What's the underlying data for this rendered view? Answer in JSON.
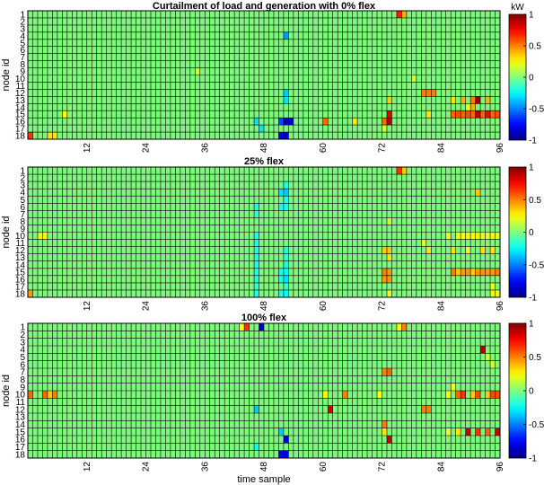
{
  "chart_data": [
    {
      "type": "heatmap",
      "title": "Curtailment of load and generation with 0% flex",
      "ylabel": "node id",
      "xlabel": "",
      "rows": 18,
      "cols": 96,
      "x_ticks": [
        12,
        24,
        36,
        48,
        60,
        72,
        84,
        96
      ],
      "y_ticks": [
        1,
        2,
        3,
        4,
        5,
        6,
        7,
        8,
        9,
        10,
        11,
        12,
        13,
        14,
        15,
        16,
        17,
        18
      ],
      "clim": [
        -1,
        1
      ],
      "colormap": "jet",
      "grid": true,
      "colorbar": {
        "unit_label": "kW",
        "ticks": [
          1,
          0.5,
          0,
          -0.5,
          -1
        ]
      },
      "nonzero_cells": [
        {
          "node": 1,
          "t": 76,
          "v": 0.7
        },
        {
          "node": 1,
          "t": 77,
          "v": 0.4
        },
        {
          "node": 4,
          "t": 53,
          "v": -0.45
        },
        {
          "node": 9,
          "t": 35,
          "v": 0.15
        },
        {
          "node": 10,
          "t": 79,
          "v": 0.15
        },
        {
          "node": 12,
          "t": 53,
          "v": -0.35
        },
        {
          "node": 12,
          "t": 81,
          "v": 0.5
        },
        {
          "node": 12,
          "t": 82,
          "v": 0.5
        },
        {
          "node": 12,
          "t": 83,
          "v": 0.5
        },
        {
          "node": 13,
          "t": 53,
          "v": -0.3
        },
        {
          "node": 13,
          "t": 74,
          "v": 0.35
        },
        {
          "node": 13,
          "t": 87,
          "v": 0.3
        },
        {
          "node": 13,
          "t": 89,
          "v": 0.4
        },
        {
          "node": 13,
          "t": 91,
          "v": 0.5
        },
        {
          "node": 13,
          "t": 92,
          "v": 0.95
        },
        {
          "node": 13,
          "t": 94,
          "v": 0.4
        },
        {
          "node": 14,
          "t": 90,
          "v": 0.2
        },
        {
          "node": 14,
          "t": 91,
          "v": 0.4
        },
        {
          "node": 15,
          "t": 8,
          "v": 0.25
        },
        {
          "node": 15,
          "t": 74,
          "v": 0.8
        },
        {
          "node": 15,
          "t": 82,
          "v": 0.3
        },
        {
          "node": 15,
          "t": 87,
          "v": 0.55
        },
        {
          "node": 15,
          "t": 88,
          "v": 0.6
        },
        {
          "node": 15,
          "t": 89,
          "v": 0.55
        },
        {
          "node": 15,
          "t": 90,
          "v": 0.6
        },
        {
          "node": 15,
          "t": 91,
          "v": 0.55
        },
        {
          "node": 15,
          "t": 92,
          "v": 0.9
        },
        {
          "node": 15,
          "t": 93,
          "v": 0.55
        },
        {
          "node": 15,
          "t": 94,
          "v": 0.75
        },
        {
          "node": 15,
          "t": 95,
          "v": 0.55
        },
        {
          "node": 15,
          "t": 96,
          "v": 0.6
        },
        {
          "node": 16,
          "t": 47,
          "v": -0.3
        },
        {
          "node": 16,
          "t": 52,
          "v": -0.6
        },
        {
          "node": 16,
          "t": 53,
          "v": -0.85
        },
        {
          "node": 16,
          "t": 54,
          "v": -0.85
        },
        {
          "node": 16,
          "t": 61,
          "v": 0.55
        },
        {
          "node": 16,
          "t": 67,
          "v": 0.3
        },
        {
          "node": 16,
          "t": 73,
          "v": 0.55
        },
        {
          "node": 16,
          "t": 74,
          "v": 0.9
        },
        {
          "node": 17,
          "t": 48,
          "v": -0.3
        },
        {
          "node": 17,
          "t": 73,
          "v": 0.15
        },
        {
          "node": 18,
          "t": 1,
          "v": 0.65
        },
        {
          "node": 18,
          "t": 5,
          "v": 0.3
        },
        {
          "node": 18,
          "t": 6,
          "v": 0.3
        },
        {
          "node": 18,
          "t": 52,
          "v": -0.8
        },
        {
          "node": 18,
          "t": 53,
          "v": -0.85
        }
      ]
    },
    {
      "type": "heatmap",
      "title": "25% flex",
      "ylabel": "node id",
      "xlabel": "",
      "rows": 18,
      "cols": 96,
      "x_ticks": [
        12,
        24,
        36,
        48,
        60,
        72,
        84,
        96
      ],
      "y_ticks": [
        1,
        2,
        3,
        4,
        5,
        6,
        7,
        8,
        9,
        10,
        11,
        12,
        13,
        14,
        15,
        16,
        17,
        18
      ],
      "clim": [
        -1,
        1
      ],
      "colormap": "jet",
      "grid": true,
      "colorbar": {
        "ticks": [
          1,
          0.5,
          0,
          -0.5,
          -1
        ]
      },
      "nonzero_cells": [
        {
          "node": 1,
          "t": 76,
          "v": 0.65
        },
        {
          "node": 1,
          "t": 77,
          "v": 0.35
        },
        {
          "node": 3,
          "t": 53,
          "v": -0.2
        },
        {
          "node": 4,
          "t": 52,
          "v": -0.3
        },
        {
          "node": 4,
          "t": 53,
          "v": -0.35
        },
        {
          "node": 4,
          "t": 92,
          "v": 0.35
        },
        {
          "node": 5,
          "t": 53,
          "v": -0.2
        },
        {
          "node": 6,
          "t": 47,
          "v": -0.2
        },
        {
          "node": 6,
          "t": 52,
          "v": -0.2
        },
        {
          "node": 6,
          "t": 53,
          "v": -0.2
        },
        {
          "node": 7,
          "t": 47,
          "v": -0.15
        },
        {
          "node": 8,
          "t": 74,
          "v": 0.15
        },
        {
          "node": 10,
          "t": 3,
          "v": 0.2
        },
        {
          "node": 10,
          "t": 4,
          "v": 0.2
        },
        {
          "node": 10,
          "t": 47,
          "v": -0.2
        },
        {
          "node": 10,
          "t": 86,
          "v": 0.2
        },
        {
          "node": 10,
          "t": 88,
          "v": 0.2
        },
        {
          "node": 10,
          "t": 89,
          "v": 0.25
        },
        {
          "node": 10,
          "t": 90,
          "v": 0.2
        },
        {
          "node": 10,
          "t": 91,
          "v": 0.25
        },
        {
          "node": 10,
          "t": 92,
          "v": 0.2
        },
        {
          "node": 10,
          "t": 93,
          "v": 0.2
        },
        {
          "node": 10,
          "t": 94,
          "v": 0.2
        },
        {
          "node": 10,
          "t": 95,
          "v": 0.2
        },
        {
          "node": 10,
          "t": 96,
          "v": 0.2
        },
        {
          "node": 11,
          "t": 47,
          "v": -0.2
        },
        {
          "node": 11,
          "t": 81,
          "v": 0.2
        },
        {
          "node": 12,
          "t": 47,
          "v": -0.2
        },
        {
          "node": 12,
          "t": 53,
          "v": -0.2
        },
        {
          "node": 12,
          "t": 73,
          "v": 0.35
        },
        {
          "node": 12,
          "t": 74,
          "v": 0.35
        },
        {
          "node": 12,
          "t": 82,
          "v": 0.3
        },
        {
          "node": 12,
          "t": 87,
          "v": 0.3
        },
        {
          "node": 12,
          "t": 90,
          "v": 0.2
        },
        {
          "node": 12,
          "t": 93,
          "v": 0.3
        },
        {
          "node": 12,
          "t": 95,
          "v": 0.3
        },
        {
          "node": 13,
          "t": 47,
          "v": -0.2
        },
        {
          "node": 13,
          "t": 53,
          "v": -0.15
        },
        {
          "node": 13,
          "t": 74,
          "v": 0.3
        },
        {
          "node": 14,
          "t": 47,
          "v": -0.2
        },
        {
          "node": 14,
          "t": 53,
          "v": -0.2
        },
        {
          "node": 15,
          "t": 47,
          "v": -0.2
        },
        {
          "node": 15,
          "t": 52,
          "v": -0.2
        },
        {
          "node": 15,
          "t": 53,
          "v": -0.25
        },
        {
          "node": 15,
          "t": 73,
          "v": 0.5
        },
        {
          "node": 15,
          "t": 74,
          "v": 0.45
        },
        {
          "node": 15,
          "t": 87,
          "v": 0.5
        },
        {
          "node": 15,
          "t": 88,
          "v": 0.35
        },
        {
          "node": 15,
          "t": 89,
          "v": 0.45
        },
        {
          "node": 15,
          "t": 90,
          "v": 0.45
        },
        {
          "node": 15,
          "t": 91,
          "v": 0.35
        },
        {
          "node": 15,
          "t": 92,
          "v": 0.45
        },
        {
          "node": 15,
          "t": 93,
          "v": 0.45
        },
        {
          "node": 15,
          "t": 94,
          "v": 0.45
        },
        {
          "node": 15,
          "t": 95,
          "v": 0.45
        },
        {
          "node": 15,
          "t": 96,
          "v": 0.5
        },
        {
          "node": 16,
          "t": 47,
          "v": -0.2
        },
        {
          "node": 16,
          "t": 52,
          "v": -0.2
        },
        {
          "node": 16,
          "t": 53,
          "v": -0.3
        },
        {
          "node": 16,
          "t": 73,
          "v": 0.45
        },
        {
          "node": 16,
          "t": 74,
          "v": 0.45
        },
        {
          "node": 17,
          "t": 47,
          "v": -0.15
        },
        {
          "node": 17,
          "t": 53,
          "v": -0.15
        },
        {
          "node": 17,
          "t": 95,
          "v": 0.2
        },
        {
          "node": 18,
          "t": 1,
          "v": 0.45
        },
        {
          "node": 18,
          "t": 47,
          "v": -0.2
        },
        {
          "node": 18,
          "t": 52,
          "v": -0.2
        },
        {
          "node": 18,
          "t": 53,
          "v": -0.25
        },
        {
          "node": 18,
          "t": 74,
          "v": 0.2
        },
        {
          "node": 18,
          "t": 95,
          "v": 0.2
        },
        {
          "node": 18,
          "t": 96,
          "v": 0.2
        }
      ]
    },
    {
      "type": "heatmap",
      "title": "100% flex",
      "ylabel": "node id",
      "xlabel": "time sample",
      "rows": 18,
      "cols": 96,
      "x_ticks": [
        12,
        24,
        36,
        48,
        60,
        72,
        84,
        96
      ],
      "y_ticks": [
        1,
        2,
        3,
        4,
        5,
        6,
        7,
        8,
        9,
        10,
        11,
        12,
        13,
        14,
        15,
        16,
        17,
        18
      ],
      "clim": [
        -1,
        1
      ],
      "colormap": "jet",
      "grid": true,
      "colorbar": {
        "ticks": [
          1,
          0.5,
          0,
          -0.5,
          -1
        ]
      },
      "nonzero_cells": [
        {
          "node": 1,
          "t": 44,
          "v": 0.25
        },
        {
          "node": 1,
          "t": 45,
          "v": 0.65
        },
        {
          "node": 1,
          "t": 48,
          "v": -0.85
        },
        {
          "node": 1,
          "t": 76,
          "v": 0.25
        },
        {
          "node": 1,
          "t": 77,
          "v": 0.5
        },
        {
          "node": 4,
          "t": 93,
          "v": 0.9
        },
        {
          "node": 5,
          "t": 94,
          "v": 0.15
        },
        {
          "node": 6,
          "t": 95,
          "v": 0.15
        },
        {
          "node": 7,
          "t": 73,
          "v": 0.5
        },
        {
          "node": 7,
          "t": 74,
          "v": 0.55
        },
        {
          "node": 9,
          "t": 87,
          "v": 0.25
        },
        {
          "node": 10,
          "t": 1,
          "v": 0.55
        },
        {
          "node": 10,
          "t": 4,
          "v": 0.55
        },
        {
          "node": 10,
          "t": 5,
          "v": 0.35
        },
        {
          "node": 10,
          "t": 6,
          "v": 0.5
        },
        {
          "node": 10,
          "t": 61,
          "v": 0.25
        },
        {
          "node": 10,
          "t": 65,
          "v": 0.5
        },
        {
          "node": 10,
          "t": 72,
          "v": 0.25
        },
        {
          "node": 10,
          "t": 86,
          "v": 0.25
        },
        {
          "node": 10,
          "t": 88,
          "v": 0.55
        },
        {
          "node": 10,
          "t": 89,
          "v": 0.65
        },
        {
          "node": 10,
          "t": 91,
          "v": 0.35
        },
        {
          "node": 10,
          "t": 92,
          "v": 0.6
        },
        {
          "node": 10,
          "t": 94,
          "v": 0.35
        },
        {
          "node": 10,
          "t": 95,
          "v": 0.6
        },
        {
          "node": 10,
          "t": 96,
          "v": 0.6
        },
        {
          "node": 12,
          "t": 47,
          "v": -0.35
        },
        {
          "node": 12,
          "t": 62,
          "v": 0.85
        },
        {
          "node": 12,
          "t": 81,
          "v": 0.5
        },
        {
          "node": 12,
          "t": 82,
          "v": 0.5
        },
        {
          "node": 14,
          "t": 73,
          "v": 0.5
        },
        {
          "node": 15,
          "t": 52,
          "v": -0.35
        },
        {
          "node": 15,
          "t": 73,
          "v": 0.3
        },
        {
          "node": 15,
          "t": 86,
          "v": 0.2
        },
        {
          "node": 15,
          "t": 88,
          "v": 0.3
        },
        {
          "node": 15,
          "t": 90,
          "v": 0.85
        },
        {
          "node": 15,
          "t": 92,
          "v": 0.65
        },
        {
          "node": 15,
          "t": 94,
          "v": 0.55
        },
        {
          "node": 15,
          "t": 96,
          "v": 0.85
        },
        {
          "node": 16,
          "t": 53,
          "v": -0.85
        },
        {
          "node": 16,
          "t": 74,
          "v": 0.85
        },
        {
          "node": 17,
          "t": 47,
          "v": -0.25
        },
        {
          "node": 18,
          "t": 52,
          "v": -0.75
        },
        {
          "node": 18,
          "t": 53,
          "v": -0.8
        }
      ]
    }
  ]
}
